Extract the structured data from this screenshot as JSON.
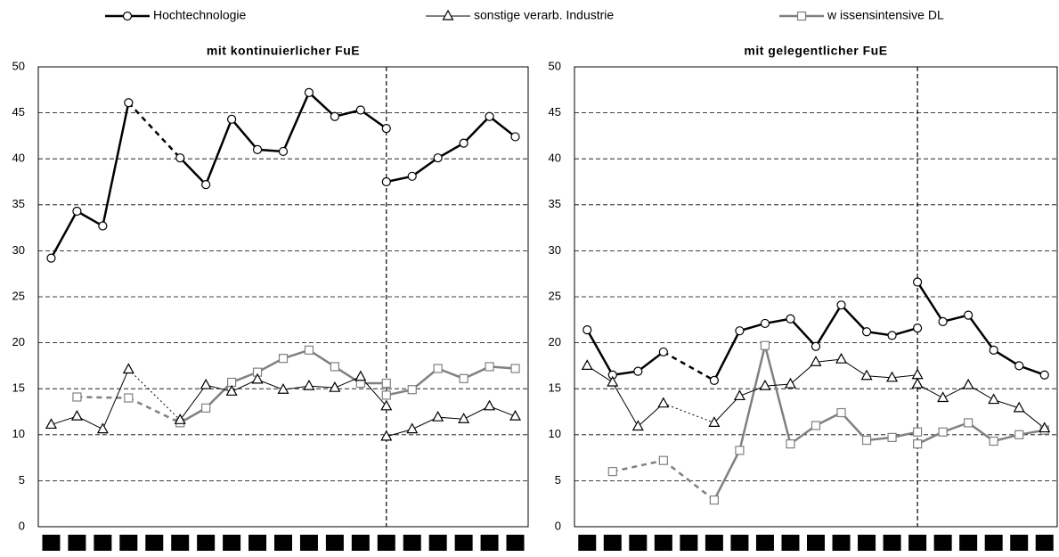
{
  "chart_data": [
    {
      "type": "line",
      "title": "mit kontinuierlicher FuE",
      "categories": [
        null,
        null,
        null,
        null,
        null,
        null,
        null,
        null,
        null,
        null,
        null,
        null,
        null,
        null,
        null,
        null,
        null,
        null,
        null
      ],
      "ylim": [
        0,
        50
      ],
      "yticks": [
        0,
        5,
        10,
        15,
        20,
        25,
        30,
        35,
        40,
        45,
        50
      ],
      "grid": true,
      "series": [
        {
          "name": "Hochtechnologie",
          "color": "#000000",
          "marker": "circle",
          "width": 2.5,
          "values": [
            29.2,
            34.3,
            32.7,
            46.1,
            null,
            40.1,
            37.2,
            44.3,
            41.0,
            40.8,
            47.2,
            44.6,
            45.3,
            43.3,
            null,
            null,
            null,
            null,
            null
          ]
        },
        {
          "name": "sonstige verarb. Industrie",
          "color": "#000000",
          "marker": "triangle",
          "width": 1,
          "values": [
            11.1,
            12.0,
            10.6,
            17.1,
            null,
            11.6,
            15.4,
            14.7,
            16.0,
            14.9,
            15.3,
            15.1,
            16.3,
            13.1,
            null,
            null,
            null,
            null,
            null
          ]
        },
        {
          "name": "w issensintensive DL",
          "color": "#808080",
          "marker": "square",
          "width": 2.5,
          "values": [
            null,
            14.1,
            null,
            14.0,
            null,
            11.3,
            12.9,
            15.7,
            16.8,
            18.3,
            19.2,
            17.4,
            15.6,
            15.6,
            null,
            null,
            null,
            null,
            null
          ]
        },
        {
          "name": "Hochtechnologie",
          "color": "#000000",
          "marker": "circle",
          "width": 2.5,
          "values": [
            null,
            null,
            null,
            null,
            null,
            null,
            null,
            null,
            null,
            null,
            null,
            null,
            null,
            37.5,
            38.1,
            40.1,
            41.7,
            44.6,
            42.4
          ]
        },
        {
          "name": "sonstige verarb. Industrie",
          "color": "#000000",
          "marker": "triangle",
          "width": 1,
          "values": [
            null,
            null,
            null,
            null,
            null,
            null,
            null,
            null,
            null,
            null,
            null,
            null,
            null,
            9.8,
            10.6,
            11.9,
            11.7,
            13.1,
            12.0
          ]
        },
        {
          "name": "w issensintensive DL",
          "color": "#808080",
          "marker": "square",
          "width": 2.5,
          "values": [
            null,
            null,
            null,
            null,
            null,
            null,
            null,
            null,
            null,
            null,
            null,
            null,
            null,
            14.3,
            14.9,
            17.2,
            16.1,
            17.4,
            17.2
          ]
        }
      ]
    },
    {
      "type": "line",
      "title": "mit gelegentlicher FuE",
      "categories": [
        null,
        null,
        null,
        null,
        null,
        null,
        null,
        null,
        null,
        null,
        null,
        null,
        null,
        null,
        null,
        null,
        null,
        null,
        null
      ],
      "ylim": [
        0,
        50
      ],
      "yticks": [
        0,
        5,
        10,
        15,
        20,
        25,
        30,
        35,
        40,
        45,
        50
      ],
      "grid": true,
      "series": [
        {
          "name": "Hochtechnologie",
          "color": "#000000",
          "marker": "circle",
          "width": 2.5,
          "values": [
            21.4,
            16.5,
            16.9,
            19.0,
            null,
            15.9,
            21.3,
            22.1,
            22.6,
            19.6,
            24.1,
            21.2,
            20.8,
            21.6,
            null,
            null,
            null,
            null,
            null
          ]
        },
        {
          "name": "sonstige verarb. Industrie",
          "color": "#000000",
          "marker": "triangle",
          "width": 1,
          "values": [
            17.5,
            15.7,
            10.9,
            13.4,
            null,
            11.3,
            14.2,
            15.3,
            15.5,
            17.9,
            18.2,
            16.4,
            16.2,
            16.5,
            null,
            null,
            null,
            null,
            null
          ]
        },
        {
          "name": "w issensintensive DL",
          "color": "#808080",
          "marker": "square",
          "width": 2.5,
          "values": [
            null,
            6.0,
            null,
            7.2,
            null,
            2.9,
            8.3,
            19.7,
            9.0,
            11.0,
            12.4,
            9.4,
            9.7,
            10.3,
            null,
            null,
            null,
            null,
            null
          ]
        },
        {
          "name": "Hochtechnologie",
          "color": "#000000",
          "marker": "circle",
          "width": 2.5,
          "values": [
            null,
            null,
            null,
            null,
            null,
            null,
            null,
            null,
            null,
            null,
            null,
            null,
            null,
            26.6,
            22.3,
            23.0,
            19.2,
            17.5,
            16.5
          ]
        },
        {
          "name": "sonstige verarb. Industrie",
          "color": "#000000",
          "marker": "triangle",
          "width": 1,
          "values": [
            null,
            null,
            null,
            null,
            null,
            null,
            null,
            null,
            null,
            null,
            null,
            null,
            null,
            15.5,
            14.0,
            15.4,
            13.8,
            12.9,
            10.7
          ]
        },
        {
          "name": "w issensintensive DL",
          "color": "#808080",
          "marker": "square",
          "width": 2.5,
          "values": [
            null,
            null,
            null,
            null,
            null,
            null,
            null,
            null,
            null,
            null,
            null,
            null,
            null,
            9.0,
            10.3,
            11.3,
            9.3,
            10.0,
            10.5
          ]
        }
      ]
    }
  ]
}
